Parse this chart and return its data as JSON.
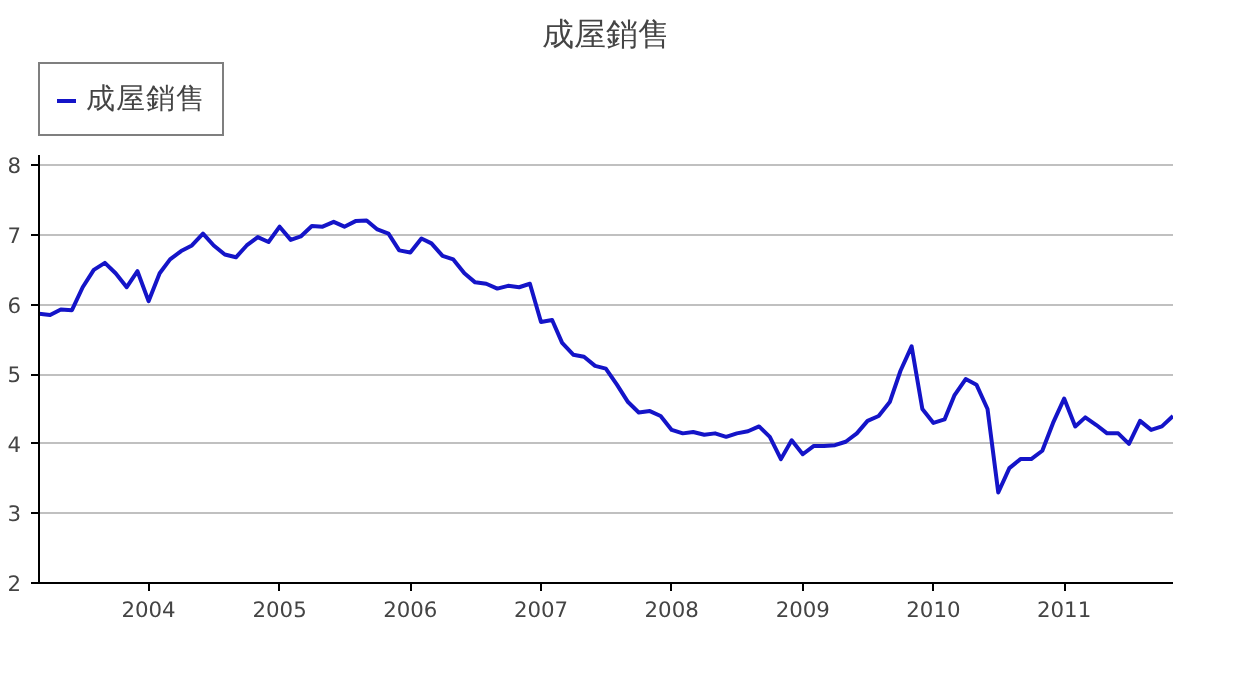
{
  "chart_data": {
    "type": "line",
    "title": "成屋銷售",
    "legend": "top left",
    "grid": "y",
    "ylim": [
      2,
      8.15
    ],
    "yticks": [
      2,
      3,
      4,
      5,
      6,
      7,
      8
    ],
    "xlim": [
      "2003-03",
      "2011-11"
    ],
    "xticks": [
      "2004",
      "2005",
      "2006",
      "2007",
      "2008",
      "2009",
      "2010",
      "2011"
    ],
    "x": [
      "2003-03",
      "2003-04",
      "2003-05",
      "2003-06",
      "2003-07",
      "2003-08",
      "2003-09",
      "2003-10",
      "2003-11",
      "2003-12",
      "2004-01",
      "2004-02",
      "2004-03",
      "2004-04",
      "2004-05",
      "2004-06",
      "2004-07",
      "2004-08",
      "2004-09",
      "2004-10",
      "2004-11",
      "2004-12",
      "2005-01",
      "2005-02",
      "2005-03",
      "2005-04",
      "2005-05",
      "2005-06",
      "2005-07",
      "2005-08",
      "2005-09",
      "2005-10",
      "2005-11",
      "2005-12",
      "2006-01",
      "2006-02",
      "2006-03",
      "2006-04",
      "2006-05",
      "2006-06",
      "2006-07",
      "2006-08",
      "2006-09",
      "2006-10",
      "2006-11",
      "2006-12",
      "2007-01",
      "2007-02",
      "2007-03",
      "2007-04",
      "2007-05",
      "2007-06",
      "2007-07",
      "2007-08",
      "2007-09",
      "2007-10",
      "2007-11",
      "2007-12",
      "2008-01",
      "2008-02",
      "2008-03",
      "2008-04",
      "2008-05",
      "2008-06",
      "2008-07",
      "2008-08",
      "2008-09",
      "2008-10",
      "2008-11",
      "2008-12",
      "2009-01",
      "2009-02",
      "2009-03",
      "2009-04",
      "2009-05",
      "2009-06",
      "2009-07",
      "2009-08",
      "2009-09",
      "2009-10",
      "2009-11",
      "2009-12",
      "2010-01",
      "2010-02",
      "2010-03",
      "2010-04",
      "2010-05",
      "2010-06",
      "2010-07",
      "2010-08",
      "2010-09",
      "2010-10",
      "2010-11",
      "2010-12",
      "2011-01",
      "2011-02",
      "2011-03",
      "2011-04",
      "2011-05",
      "2011-06",
      "2011-07",
      "2011-08",
      "2011-09",
      "2011-10",
      "2011-11"
    ],
    "series": [
      {
        "name": "成屋銷售",
        "color": "#1414c8",
        "values": [
          5.87,
          5.85,
          5.93,
          5.92,
          6.25,
          6.5,
          6.6,
          6.45,
          6.25,
          6.48,
          6.05,
          6.45,
          6.65,
          6.77,
          6.85,
          7.02,
          6.85,
          6.72,
          6.68,
          6.85,
          6.97,
          6.9,
          7.12,
          6.93,
          6.98,
          7.13,
          7.12,
          7.19,
          7.12,
          7.2,
          7.21,
          7.08,
          7.02,
          6.78,
          6.75,
          6.95,
          6.88,
          6.7,
          6.65,
          6.45,
          6.32,
          6.3,
          6.23,
          6.27,
          6.25,
          6.3,
          5.75,
          5.78,
          5.45,
          5.28,
          5.25,
          5.12,
          5.08,
          4.85,
          4.6,
          4.45,
          4.47,
          4.4,
          4.2,
          4.15,
          4.17,
          4.13,
          4.15,
          4.1,
          4.15,
          4.18,
          4.25,
          4.1,
          3.78,
          4.05,
          3.85,
          3.97,
          3.97,
          3.98,
          4.03,
          4.15,
          4.33,
          4.4,
          4.6,
          5.05,
          5.4,
          4.5,
          4.3,
          4.35,
          4.7,
          4.93,
          4.85,
          4.5,
          3.3,
          3.65,
          3.78,
          3.78,
          3.9,
          4.3,
          4.65,
          4.25,
          4.38,
          4.27,
          4.15,
          4.15,
          4.0,
          4.33,
          4.2,
          4.25,
          4.4
        ]
      }
    ]
  }
}
